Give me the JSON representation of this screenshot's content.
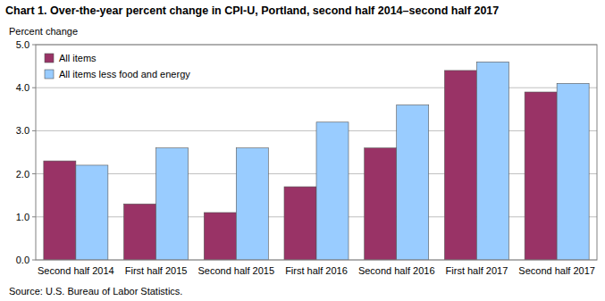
{
  "chart_data": {
    "type": "bar",
    "title": "Chart 1. Over-the-year percent change in CPI-U, Portland, second half 2014–second half 2017",
    "y_label": "Percent change",
    "categories": [
      "Second half 2014",
      "First half 2015",
      "Second half 2015",
      "First half 2016",
      "Second half 2016",
      "First half 2017",
      "Second half 2017"
    ],
    "series": [
      {
        "name": "All items",
        "color": "#993366",
        "values": [
          2.3,
          1.3,
          1.1,
          1.7,
          2.6,
          4.4,
          3.9
        ]
      },
      {
        "name": "All items less food and energy",
        "color": "#99CCFF",
        "values": [
          2.2,
          2.6,
          2.6,
          3.2,
          3.6,
          4.6,
          4.1
        ]
      }
    ],
    "ylim": [
      0,
      5
    ],
    "yticks": [
      {
        "value": 0,
        "label": "0.0"
      },
      {
        "value": 1,
        "label": "1.0"
      },
      {
        "value": 2,
        "label": "2.0"
      },
      {
        "value": 3,
        "label": "3.0"
      },
      {
        "value": 4,
        "label": "4.0"
      },
      {
        "value": 5,
        "label": "5.0"
      }
    ],
    "grid": true,
    "legend": "upper left",
    "source": "Source: U.S. Bureau of Labor Statistics."
  }
}
